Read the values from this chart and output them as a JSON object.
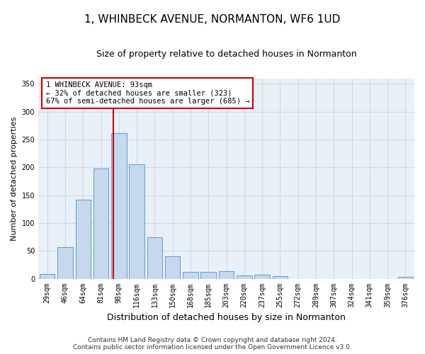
{
  "title": "1, WHINBECK AVENUE, NORMANTON, WF6 1UD",
  "subtitle": "Size of property relative to detached houses in Normanton",
  "xlabel": "Distribution of detached houses by size in Normanton",
  "ylabel": "Number of detached properties",
  "categories": [
    "29sqm",
    "46sqm",
    "64sqm",
    "81sqm",
    "98sqm",
    "116sqm",
    "133sqm",
    "150sqm",
    "168sqm",
    "185sqm",
    "203sqm",
    "220sqm",
    "237sqm",
    "255sqm",
    "272sqm",
    "289sqm",
    "307sqm",
    "324sqm",
    "341sqm",
    "359sqm",
    "376sqm"
  ],
  "values": [
    8,
    57,
    142,
    198,
    262,
    205,
    75,
    40,
    12,
    12,
    13,
    6,
    7,
    4,
    0,
    0,
    0,
    0,
    0,
    0,
    3
  ],
  "bar_color": "#c5d8ed",
  "bar_edge_color": "#5b9bd5",
  "annotation_line1": "1 WHINBECK AVENUE: 93sqm",
  "annotation_line2": "← 32% of detached houses are smaller (323)",
  "annotation_line3": "67% of semi-detached houses are larger (685) →",
  "annotation_box_color": "#ffffff",
  "annotation_box_edge_color": "#cc0000",
  "ylim": [
    0,
    360
  ],
  "yticks": [
    0,
    50,
    100,
    150,
    200,
    250,
    300,
    350
  ],
  "grid_color": "#d0d8e8",
  "background_color": "#eaf0f8",
  "footer_line1": "Contains HM Land Registry data © Crown copyright and database right 2024.",
  "footer_line2": "Contains public sector information licensed under the Open Government Licence v3.0.",
  "title_fontsize": 11,
  "subtitle_fontsize": 9,
  "xlabel_fontsize": 9,
  "ylabel_fontsize": 8,
  "tick_fontsize": 7,
  "footer_fontsize": 6.5,
  "annotation_fontsize": 7.5
}
